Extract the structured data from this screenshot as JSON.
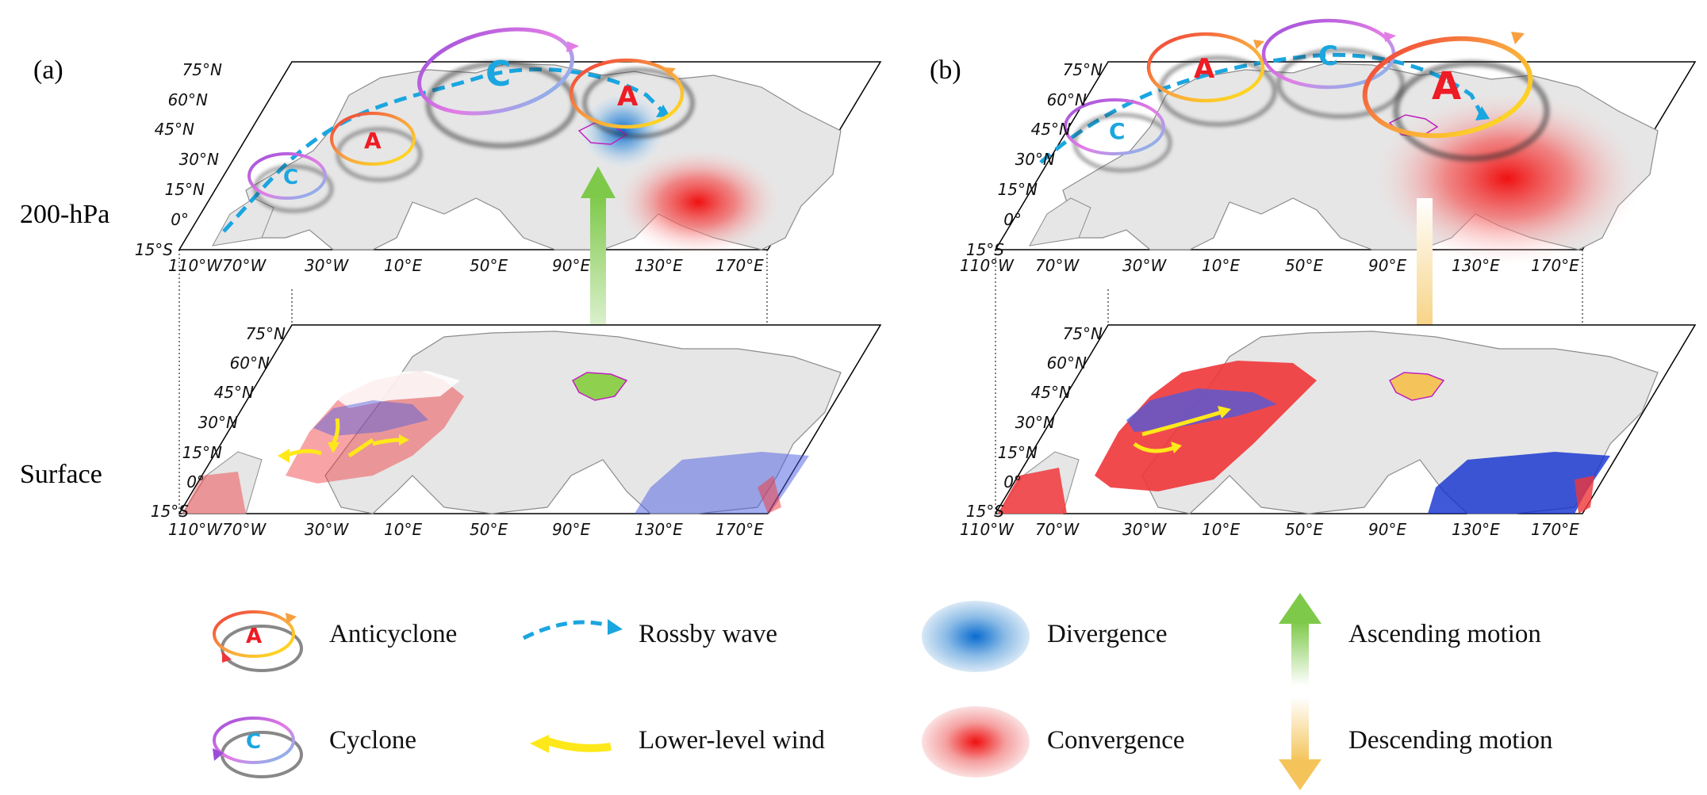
{
  "panels": [
    {
      "label": "(a)"
    },
    {
      "label": "(b)"
    }
  ],
  "levels": {
    "upper": "200-hPa",
    "surface": "Surface"
  },
  "lat_ticks": [
    "75°N",
    "60°N",
    "45°N",
    "30°N",
    "15°N",
    "0°",
    "15°S"
  ],
  "lon_ticks": [
    "110°W",
    "70°W",
    "30°W",
    "10°E",
    "50°E",
    "90°E",
    "130°E",
    "170°E"
  ],
  "symbols": {
    "anticyclone": "A",
    "cyclone": "C"
  },
  "legend": {
    "anticyclone": "Anticyclone",
    "cyclone": "Cyclone",
    "rossby": "Rossby wave",
    "wind": "Lower-level wind",
    "divergence": "Divergence",
    "convergence": "Convergence",
    "ascending": "Ascending motion",
    "descending": "Descending motion"
  },
  "colors": {
    "land": "#e6e6e6",
    "coast": "#8c8c8c",
    "warm_anomaly": "#f0363a",
    "cold_anomaly": "#4a5be0",
    "rossby": "#1aa6e0",
    "wind": "#ffe81a",
    "anticyclone_text": "#ee1c24",
    "cyclone_text": "#1aa6e0",
    "ascending": "#7ec94a",
    "descending": "#f4c45a"
  }
}
